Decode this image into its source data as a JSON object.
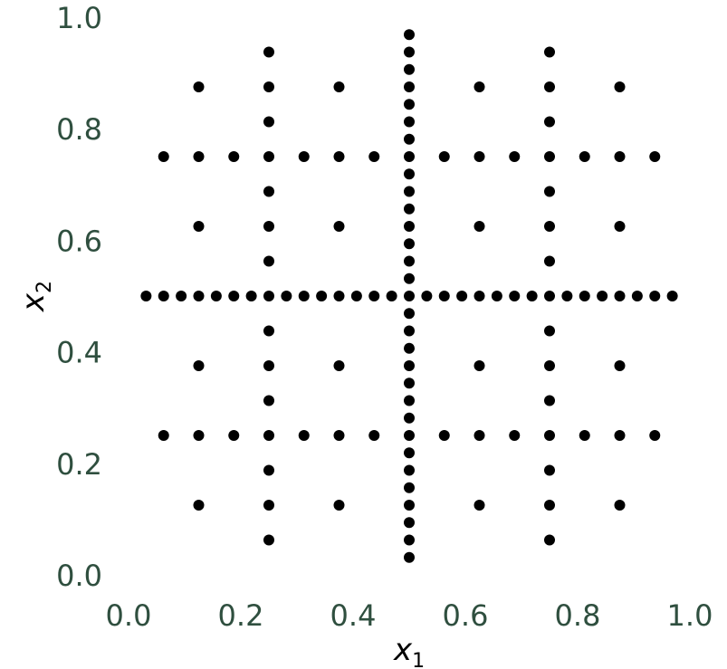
{
  "colors": {
    "tick_label": "#2f4f3f",
    "point": "#000000",
    "axis_label": "#000000"
  },
  "chart_data": {
    "type": "scatter",
    "title": "",
    "xlabel": "x",
    "xlabel_sub": "1",
    "ylabel": "x",
    "ylabel_sub": "2",
    "xlim": [
      0.0,
      1.0
    ],
    "ylim": [
      0.0,
      1.0
    ],
    "xticks": [
      "0.0",
      "0.2",
      "0.4",
      "0.6",
      "0.8",
      "1.0"
    ],
    "yticks": [
      "0.0",
      "0.2",
      "0.4",
      "0.6",
      "0.8",
      "1.0"
    ],
    "grid": false,
    "legend": "none",
    "series": [
      {
        "points": [
          [
            0.5,
            0.03125
          ],
          [
            0.5,
            0.0625
          ],
          [
            0.5,
            0.09375
          ],
          [
            0.5,
            0.125
          ],
          [
            0.5,
            0.15625
          ],
          [
            0.5,
            0.1875
          ],
          [
            0.5,
            0.21875
          ],
          [
            0.5,
            0.25
          ],
          [
            0.5,
            0.28125
          ],
          [
            0.5,
            0.3125
          ],
          [
            0.5,
            0.34375
          ],
          [
            0.5,
            0.375
          ],
          [
            0.5,
            0.40625
          ],
          [
            0.5,
            0.4375
          ],
          [
            0.5,
            0.46875
          ],
          [
            0.5,
            0.5
          ],
          [
            0.5,
            0.53125
          ],
          [
            0.5,
            0.5625
          ],
          [
            0.5,
            0.59375
          ],
          [
            0.5,
            0.625
          ],
          [
            0.5,
            0.65625
          ],
          [
            0.5,
            0.6875
          ],
          [
            0.5,
            0.71875
          ],
          [
            0.5,
            0.75
          ],
          [
            0.5,
            0.78125
          ],
          [
            0.5,
            0.8125
          ],
          [
            0.5,
            0.84375
          ],
          [
            0.5,
            0.875
          ],
          [
            0.5,
            0.90625
          ],
          [
            0.5,
            0.9375
          ],
          [
            0.5,
            0.96875
          ],
          [
            0.03125,
            0.5
          ],
          [
            0.0625,
            0.5
          ],
          [
            0.09375,
            0.5
          ],
          [
            0.125,
            0.5
          ],
          [
            0.15625,
            0.5
          ],
          [
            0.1875,
            0.5
          ],
          [
            0.21875,
            0.5
          ],
          [
            0.25,
            0.5
          ],
          [
            0.28125,
            0.5
          ],
          [
            0.3125,
            0.5
          ],
          [
            0.34375,
            0.5
          ],
          [
            0.375,
            0.5
          ],
          [
            0.40625,
            0.5
          ],
          [
            0.4375,
            0.5
          ],
          [
            0.46875,
            0.5
          ],
          [
            0.53125,
            0.5
          ],
          [
            0.5625,
            0.5
          ],
          [
            0.59375,
            0.5
          ],
          [
            0.625,
            0.5
          ],
          [
            0.65625,
            0.5
          ],
          [
            0.6875,
            0.5
          ],
          [
            0.71875,
            0.5
          ],
          [
            0.75,
            0.5
          ],
          [
            0.78125,
            0.5
          ],
          [
            0.8125,
            0.5
          ],
          [
            0.84375,
            0.5
          ],
          [
            0.875,
            0.5
          ],
          [
            0.90625,
            0.5
          ],
          [
            0.9375,
            0.5
          ],
          [
            0.96875,
            0.5
          ],
          [
            0.25,
            0.0625
          ],
          [
            0.25,
            0.125
          ],
          [
            0.25,
            0.1875
          ],
          [
            0.25,
            0.25
          ],
          [
            0.25,
            0.3125
          ],
          [
            0.25,
            0.375
          ],
          [
            0.25,
            0.4375
          ],
          [
            0.25,
            0.5625
          ],
          [
            0.25,
            0.625
          ],
          [
            0.25,
            0.6875
          ],
          [
            0.25,
            0.75
          ],
          [
            0.25,
            0.8125
          ],
          [
            0.25,
            0.875
          ],
          [
            0.25,
            0.9375
          ],
          [
            0.75,
            0.0625
          ],
          [
            0.75,
            0.125
          ],
          [
            0.75,
            0.1875
          ],
          [
            0.75,
            0.25
          ],
          [
            0.75,
            0.3125
          ],
          [
            0.75,
            0.375
          ],
          [
            0.75,
            0.4375
          ],
          [
            0.75,
            0.5625
          ],
          [
            0.75,
            0.625
          ],
          [
            0.75,
            0.6875
          ],
          [
            0.75,
            0.75
          ],
          [
            0.75,
            0.8125
          ],
          [
            0.75,
            0.875
          ],
          [
            0.75,
            0.9375
          ],
          [
            0.0625,
            0.25
          ],
          [
            0.125,
            0.25
          ],
          [
            0.1875,
            0.25
          ],
          [
            0.3125,
            0.25
          ],
          [
            0.375,
            0.25
          ],
          [
            0.4375,
            0.25
          ],
          [
            0.5625,
            0.25
          ],
          [
            0.625,
            0.25
          ],
          [
            0.6875,
            0.25
          ],
          [
            0.8125,
            0.25
          ],
          [
            0.875,
            0.25
          ],
          [
            0.9375,
            0.25
          ],
          [
            0.0625,
            0.75
          ],
          [
            0.125,
            0.75
          ],
          [
            0.1875,
            0.75
          ],
          [
            0.3125,
            0.75
          ],
          [
            0.375,
            0.75
          ],
          [
            0.4375,
            0.75
          ],
          [
            0.5625,
            0.75
          ],
          [
            0.625,
            0.75
          ],
          [
            0.6875,
            0.75
          ],
          [
            0.8125,
            0.75
          ],
          [
            0.875,
            0.75
          ],
          [
            0.9375,
            0.75
          ],
          [
            0.125,
            0.125
          ],
          [
            0.375,
            0.125
          ],
          [
            0.625,
            0.125
          ],
          [
            0.875,
            0.125
          ],
          [
            0.125,
            0.375
          ],
          [
            0.375,
            0.375
          ],
          [
            0.625,
            0.375
          ],
          [
            0.875,
            0.375
          ],
          [
            0.125,
            0.625
          ],
          [
            0.375,
            0.625
          ],
          [
            0.625,
            0.625
          ],
          [
            0.875,
            0.625
          ],
          [
            0.125,
            0.875
          ],
          [
            0.375,
            0.875
          ],
          [
            0.625,
            0.875
          ],
          [
            0.875,
            0.875
          ]
        ]
      }
    ]
  }
}
